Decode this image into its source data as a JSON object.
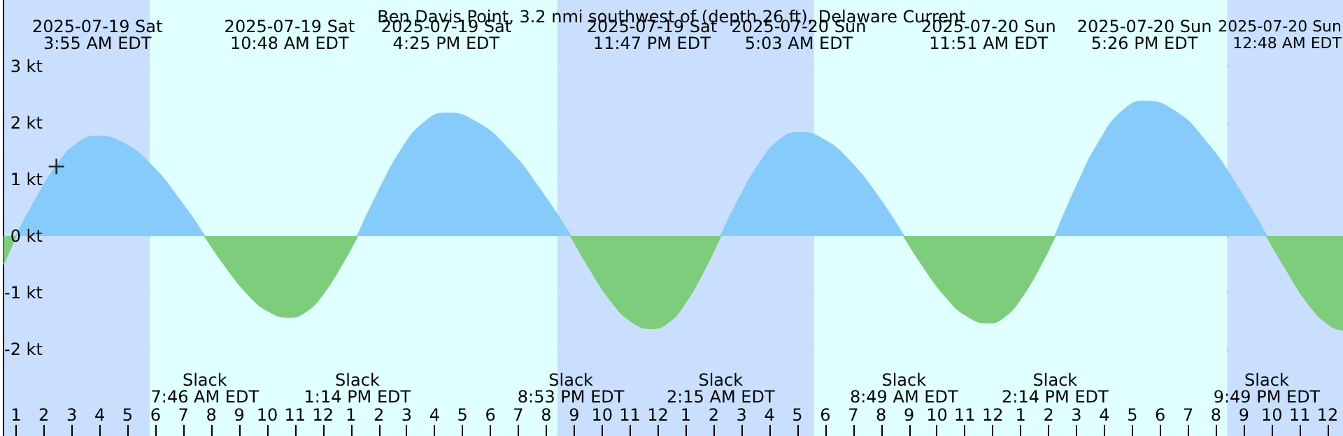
{
  "chart_data": {
    "type": "area",
    "title": "Ben Davis Point, 3.2 nmi southwest of (depth 26 ft), Delaware Current",
    "series": [
      {
        "color": "#87cbfa",
        "x": [
          "2025-07-19T01:00",
          "2025-07-19T01:44",
          "2025-07-19T02:28",
          "2025-07-19T03:11",
          "2025-07-19T03:55",
          "2025-07-19T04:53",
          "2025-07-19T05:51",
          "2025-07-19T06:49",
          "2025-07-19T07:46",
          "2025-07-19T10:30",
          "2025-07-19T13:14",
          "2025-07-19T14:02",
          "2025-07-19T14:49",
          "2025-07-19T15:37",
          "2025-07-19T16:25",
          "2025-07-19T17:32",
          "2025-07-19T18:39",
          "2025-07-19T19:46",
          "2025-07-19T20:53",
          "2025-07-19T23:30",
          "2025-07-20T02:15",
          "2025-07-20T02:57",
          "2025-07-20T03:39",
          "2025-07-20T04:21",
          "2025-07-20T05:03",
          "2025-07-20T05:59",
          "2025-07-20T06:56",
          "2025-07-20T07:53",
          "2025-07-20T08:49",
          "2025-07-20T11:30",
          "2025-07-20T14:14",
          "2025-07-20T15:02",
          "2025-07-20T15:50",
          "2025-07-20T16:38",
          "2025-07-20T17:26",
          "2025-07-20T18:32",
          "2025-07-20T19:37",
          "2025-07-20T20:43",
          "2025-07-20T21:49"
        ],
        "values": [
          0,
          0.67,
          1.25,
          1.63,
          1.76,
          1.63,
          1.25,
          0.67,
          0,
          null,
          0,
          0.83,
          1.53,
          2.0,
          2.17,
          2.0,
          1.53,
          0.83,
          0,
          null,
          0,
          0.7,
          1.29,
          1.69,
          1.83,
          1.69,
          1.29,
          0.7,
          0,
          null,
          0,
          0.91,
          1.68,
          2.2,
          2.38,
          2.2,
          1.68,
          0.91,
          0
        ]
      },
      {
        "color": "#7dcd7d",
        "x": [
          "2025-07-19T00:33",
          "2025-07-19T01:00",
          "2025-07-19T04:00",
          "2025-07-19T07:46",
          "2025-07-19T08:32",
          "2025-07-19T09:17",
          "2025-07-19T10:02",
          "2025-07-19T10:48",
          "2025-07-19T11:25",
          "2025-07-19T12:01",
          "2025-07-19T12:37",
          "2025-07-19T13:14",
          "2025-07-19T17:00",
          "2025-07-19T20:53",
          "2025-07-19T21:37",
          "2025-07-19T22:20",
          "2025-07-19T23:04",
          "2025-07-19T23:47",
          "2025-07-20T00:24",
          "2025-07-20T01:01",
          "2025-07-20T01:38",
          "2025-07-20T02:15",
          "2025-07-20T05:30",
          "2025-07-20T08:49",
          "2025-07-20T09:35",
          "2025-07-20T10:20",
          "2025-07-20T11:05",
          "2025-07-20T11:51",
          "2025-07-20T12:27",
          "2025-07-20T13:02",
          "2025-07-20T13:38",
          "2025-07-20T14:14",
          "2025-07-20T18:00",
          "2025-07-20T21:49",
          "2025-07-20T22:34",
          "2025-07-20T23:19",
          "2025-07-21T00:04",
          "2025-07-21T00:33"
        ],
        "values": [
          -0.5,
          0,
          null,
          0,
          -0.55,
          -1.01,
          -1.32,
          -1.43,
          -1.32,
          -1.01,
          -0.55,
          0,
          null,
          0,
          -0.62,
          -1.15,
          -1.51,
          -1.63,
          -1.51,
          -1.15,
          -0.62,
          0,
          null,
          0,
          -0.59,
          -1.08,
          -1.41,
          -1.53,
          -1.41,
          -1.08,
          -0.59,
          0,
          null,
          0,
          -0.63,
          -1.2,
          -1.57,
          -1.66
        ]
      },
      {
        "type": "scatter",
        "color": "#000000",
        "marker": "cross",
        "x": [
          "2025-07-19T02:27"
        ],
        "values": [
          1.23
        ]
      }
    ],
    "xlim": [
      "2025-07-19T00:33",
      "2025-07-21T00:33"
    ],
    "xticks": [
      {
        "value": "2025-07-19T01:00",
        "label": "1"
      },
      {
        "value": "2025-07-19T02:00",
        "label": "2"
      },
      {
        "value": "2025-07-19T03:00",
        "label": "3"
      },
      {
        "value": "2025-07-19T04:00",
        "label": "4"
      },
      {
        "value": "2025-07-19T05:00",
        "label": "5"
      },
      {
        "value": "2025-07-19T06:00",
        "label": "6"
      },
      {
        "value": "2025-07-19T07:00",
        "label": "7"
      },
      {
        "value": "2025-07-19T08:00",
        "label": "8"
      },
      {
        "value": "2025-07-19T09:00",
        "label": "9"
      },
      {
        "value": "2025-07-19T10:00",
        "label": "10"
      },
      {
        "value": "2025-07-19T11:00",
        "label": "11"
      },
      {
        "value": "2025-07-19T12:00",
        "label": "12"
      },
      {
        "value": "2025-07-19T13:00",
        "label": "1"
      },
      {
        "value": "2025-07-19T14:00",
        "label": "2"
      },
      {
        "value": "2025-07-19T15:00",
        "label": "3"
      },
      {
        "value": "2025-07-19T16:00",
        "label": "4"
      },
      {
        "value": "2025-07-19T17:00",
        "label": "5"
      },
      {
        "value": "2025-07-19T18:00",
        "label": "6"
      },
      {
        "value": "2025-07-19T19:00",
        "label": "7"
      },
      {
        "value": "2025-07-19T20:00",
        "label": "8"
      },
      {
        "value": "2025-07-19T21:00",
        "label": "9"
      },
      {
        "value": "2025-07-19T22:00",
        "label": "10"
      },
      {
        "value": "2025-07-19T23:00",
        "label": "11"
      },
      {
        "value": "2025-07-20T00:00",
        "label": "12"
      },
      {
        "value": "2025-07-20T01:00",
        "label": "1"
      },
      {
        "value": "2025-07-20T02:00",
        "label": "2"
      },
      {
        "value": "2025-07-20T03:00",
        "label": "3"
      },
      {
        "value": "2025-07-20T04:00",
        "label": "4"
      },
      {
        "value": "2025-07-20T05:00",
        "label": "5"
      },
      {
        "value": "2025-07-20T06:00",
        "label": "6"
      },
      {
        "value": "2025-07-20T07:00",
        "label": "7"
      },
      {
        "value": "2025-07-20T08:00",
        "label": "8"
      },
      {
        "value": "2025-07-20T09:00",
        "label": "9"
      },
      {
        "value": "2025-07-20T10:00",
        "label": "10"
      },
      {
        "value": "2025-07-20T11:00",
        "label": "11"
      },
      {
        "value": "2025-07-20T12:00",
        "label": "12"
      },
      {
        "value": "2025-07-20T13:00",
        "label": "1"
      },
      {
        "value": "2025-07-20T14:00",
        "label": "2"
      },
      {
        "value": "2025-07-20T15:00",
        "label": "3"
      },
      {
        "value": "2025-07-20T16:00",
        "label": "4"
      },
      {
        "value": "2025-07-20T17:00",
        "label": "5"
      },
      {
        "value": "2025-07-20T18:00",
        "label": "6"
      },
      {
        "value": "2025-07-20T19:00",
        "label": "7"
      },
      {
        "value": "2025-07-20T20:00",
        "label": "8"
      },
      {
        "value": "2025-07-20T21:00",
        "label": "9"
      },
      {
        "value": "2025-07-20T22:00",
        "label": "10"
      },
      {
        "value": "2025-07-20T23:00",
        "label": "11"
      },
      {
        "value": "2025-07-21T00:00",
        "label": "12"
      }
    ],
    "ylim": [
      -3.53,
      4.17
    ],
    "yticks": [
      {
        "value": -2,
        "label": "-2 kt"
      },
      {
        "value": -1,
        "label": "-1 kt"
      },
      {
        "value": 0,
        "label": "0 kt"
      },
      {
        "value": 1,
        "label": "1 kt"
      },
      {
        "value": 2,
        "label": "2 kt"
      },
      {
        "value": 3,
        "label": "3 kt"
      }
    ],
    "grid": "y",
    "bands": [
      {
        "axis": "x",
        "from": "2025-07-19T00:33",
        "to": "2025-07-19T05:48",
        "color": "#c9dffd"
      },
      {
        "axis": "x",
        "from": "2025-07-19T05:48",
        "to": "2025-07-19T20:24",
        "color": "#e0ffff"
      },
      {
        "axis": "x",
        "from": "2025-07-19T20:24",
        "to": "2025-07-20T05:36",
        "color": "#c9dffd"
      },
      {
        "axis": "x",
        "from": "2025-07-20T05:36",
        "to": "2025-07-20T20:24",
        "color": "#e0ffff"
      },
      {
        "axis": "x",
        "from": "2025-07-20T20:24",
        "to": "2025-07-21T00:33",
        "color": "#c9dffd"
      }
    ],
    "annotations": [
      "2025-07-19 Sat\n3:55 AM EDT",
      "2025-07-19 Sat\n10:48 AM EDT",
      "2025-07-19 Sat\n4:25 PM EDT",
      "2025-07-19 Sat\n11:47 PM EDT",
      "2025-07-20 Sun\n5:03 AM EDT",
      "2025-07-20 Sun\n11:51 AM EDT",
      "2025-07-20 Sun\n5:26 PM EDT",
      "2025-07-20 Sun\n12:48 AM EDT",
      "Slack\n7:46 AM EDT",
      "Slack\n1:14 PM EDT",
      "Slack\n8:53 PM EDT",
      "Slack\n2:15 AM EDT",
      "Slack\n8:49 AM EDT",
      "Slack\n2:14 PM EDT",
      "Slack\n9:49 PM EDT"
    ]
  }
}
